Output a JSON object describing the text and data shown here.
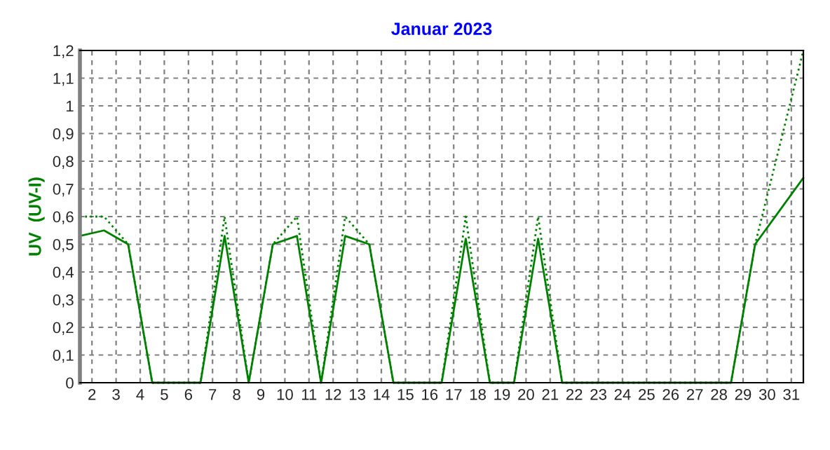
{
  "chart_data": {
    "type": "line",
    "title": "Januar 2023",
    "ylabel": "UV  (UV-I)",
    "x": [
      1.5,
      2.5,
      3.5,
      4.5,
      5.5,
      6.5,
      7.5,
      8.5,
      9.5,
      10.5,
      11.5,
      12.5,
      13.5,
      14.5,
      15.5,
      16.5,
      17.5,
      18.5,
      19.5,
      20.5,
      21.5,
      22.5,
      23.5,
      24.5,
      25.5,
      26.5,
      27.5,
      28.5,
      29.5,
      30.5,
      31.5
    ],
    "series": [
      {
        "color": "#008000",
        "line_style": "solid",
        "values": [
          0.53,
          0.55,
          0.5,
          0,
          0,
          0,
          0.53,
          0,
          0.5,
          0.53,
          0,
          0.53,
          0.5,
          0,
          0,
          0,
          0.52,
          0,
          0,
          0.52,
          0,
          0,
          0,
          0,
          0,
          0,
          0,
          0,
          0.5,
          0.62,
          0.74
        ]
      },
      {
        "color": "#008000",
        "line_style": "dotted",
        "values": [
          0.6,
          0.6,
          0.5,
          0,
          0,
          0,
          0.6,
          0,
          0.5,
          0.6,
          0,
          0.6,
          0.5,
          0,
          0,
          0,
          0.6,
          0,
          0,
          0.6,
          0,
          0,
          0,
          0,
          0,
          0,
          0,
          0,
          0.5,
          0.85,
          1.2
        ]
      }
    ],
    "xlim": [
      1.5,
      31.5
    ],
    "xticks": [
      2,
      3,
      4,
      5,
      6,
      7,
      8,
      9,
      10,
      11,
      12,
      13,
      14,
      15,
      16,
      17,
      18,
      19,
      20,
      21,
      22,
      23,
      24,
      25,
      26,
      27,
      28,
      29,
      30,
      31
    ],
    "ylim": [
      0,
      1.2
    ],
    "yticks": [
      0,
      {
        "value": 0.1,
        "label": "0,1"
      },
      {
        "value": 0.2,
        "label": "0,2"
      },
      {
        "value": 0.3,
        "label": "0,3"
      },
      {
        "value": 0.4,
        "label": "0,4"
      },
      {
        "value": 0.5,
        "label": "0,5"
      },
      {
        "value": 0.6,
        "label": "0,6"
      },
      {
        "value": 0.7,
        "label": "0,7"
      },
      {
        "value": 0.8,
        "label": "0,8"
      },
      {
        "value": 0.9,
        "label": "0,9"
      },
      1,
      {
        "value": 1.1,
        "label": "1,1"
      },
      {
        "value": 1.2,
        "label": "1,2"
      }
    ],
    "grid": true,
    "marker": "none",
    "legend": false
  }
}
